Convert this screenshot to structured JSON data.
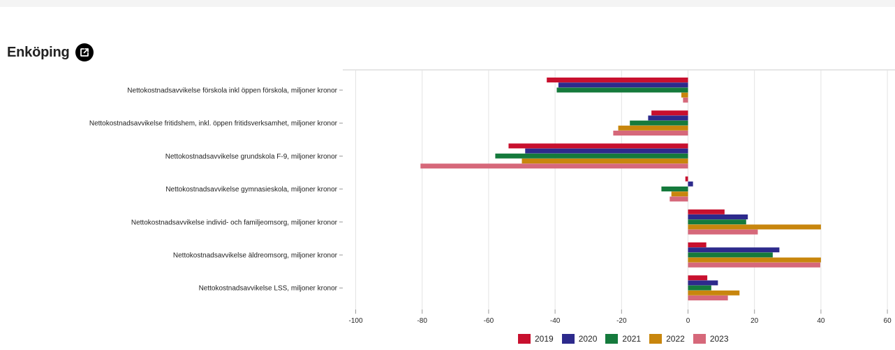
{
  "header": {
    "title": "Enköping",
    "external_link_icon": "external-link-icon"
  },
  "colors": {
    "2019": "#c8102e",
    "2020": "#2d2a8c",
    "2021": "#157a3c",
    "2022": "#c8860d",
    "2023": "#d6687a"
  },
  "chart_data": {
    "type": "bar",
    "orientation": "horizontal",
    "title": "",
    "xlabel": "",
    "ylabel": "",
    "xlim": [
      -100,
      60
    ],
    "x_ticks": [
      -100,
      -80,
      -60,
      -40,
      -20,
      0,
      20,
      40,
      60
    ],
    "grid": "vertical",
    "legend_position": "bottom",
    "categories": [
      "Nettokostnadsavvikelse förskola inkl öppen förskola, miljoner kronor",
      "Nettokostnadsavvikelse fritidshem, inkl. öppen fritidsverksamhet, miljoner kronor",
      "Nettokostnadsavvikelse grundskola F-9, miljoner kronor",
      "Nettokostnadsavvikelse gymnasieskola, miljoner kronor",
      "Nettokostnadsavvikelse individ- och familjeomsorg, miljoner kronor",
      "Nettokostnadsavvikelse äldreomsorg, miljoner kronor",
      "Nettokostnadsavvikelse LSS, miljoner kronor"
    ],
    "series": [
      {
        "name": "2019",
        "values": [
          -42.5,
          -11,
          -54,
          -0.8,
          11,
          5.5,
          5.8
        ]
      },
      {
        "name": "2020",
        "values": [
          -39,
          -12,
          -49,
          1.5,
          18,
          27.5,
          9
        ]
      },
      {
        "name": "2021",
        "values": [
          -39.5,
          -17.5,
          -58,
          -8,
          17.5,
          25.5,
          7
        ]
      },
      {
        "name": "2022",
        "values": [
          -2,
          -21,
          -50,
          -5,
          40,
          40,
          15.5
        ]
      },
      {
        "name": "2023",
        "values": [
          -1.5,
          -22.5,
          -80.5,
          -5.5,
          21,
          39.8,
          12
        ]
      }
    ]
  }
}
